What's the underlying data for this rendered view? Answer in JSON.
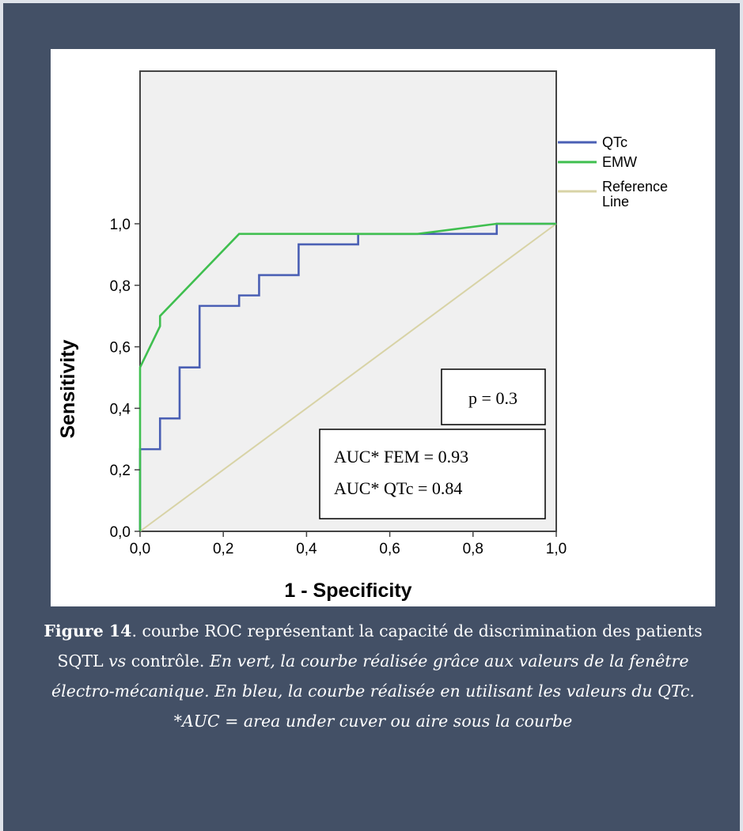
{
  "chart_data": {
    "type": "line",
    "xlabel": "1 - Specificity",
    "ylabel": "Sensitivity",
    "xlim": [
      0,
      1
    ],
    "ylim": [
      0,
      1
    ],
    "x_ticks": [
      "0,0",
      "0,2",
      "0,4",
      "0,6",
      "0,8",
      "1,0"
    ],
    "y_ticks": [
      "0,0",
      "0,2",
      "0,4",
      "0,6",
      "0,8",
      "1,0"
    ],
    "grid": false,
    "legend_placement": "right",
    "series": [
      {
        "name": "QTc",
        "color": "#4a5fb4",
        "points": [
          [
            0,
            0
          ],
          [
            0,
            0.267
          ],
          [
            0.048,
            0.267
          ],
          [
            0.048,
            0.367
          ],
          [
            0.095,
            0.367
          ],
          [
            0.095,
            0.533
          ],
          [
            0.143,
            0.533
          ],
          [
            0.143,
            0.733
          ],
          [
            0.238,
            0.733
          ],
          [
            0.238,
            0.767
          ],
          [
            0.286,
            0.767
          ],
          [
            0.286,
            0.833
          ],
          [
            0.381,
            0.833
          ],
          [
            0.381,
            0.933
          ],
          [
            0.524,
            0.933
          ],
          [
            0.524,
            0.967
          ],
          [
            0.857,
            0.967
          ],
          [
            0.857,
            1.0
          ],
          [
            1.0,
            1.0
          ]
        ]
      },
      {
        "name": "EMW",
        "color": "#3fbf4f",
        "points": [
          [
            0,
            0
          ],
          [
            0,
            0.533
          ],
          [
            0.048,
            0.667
          ],
          [
            0.048,
            0.7
          ],
          [
            0.238,
            0.967
          ],
          [
            0.667,
            0.967
          ],
          [
            0.857,
            1.0
          ],
          [
            1.0,
            1.0
          ]
        ]
      },
      {
        "name": "Reference Line",
        "color": "#d8d3a6",
        "points": [
          [
            0,
            0
          ],
          [
            1,
            1
          ]
        ]
      }
    ],
    "legend": [
      "QTc",
      "EMW",
      "Reference",
      "Line"
    ],
    "annotations": {
      "p_value": "p = 0.3",
      "auc_fem": "AUC* FEM = 0.93",
      "auc_qtc": "AUC* QTc = 0.84"
    }
  },
  "caption": {
    "figure_number": "Figure 14",
    "text_1": ". courbe ROC représentant la capacité de discrimination des patients SQTL ",
    "vs": "vs",
    "text_2": " contrôle. ",
    "italic": "En vert, la courbe réalisée grâce aux valeurs de la fenêtre électro-mécanique. En bleu, la courbe réalisée en utilisant les valeurs du QTc.",
    "footnote": "*AUC = area under cuver ou aire sous la courbe"
  }
}
